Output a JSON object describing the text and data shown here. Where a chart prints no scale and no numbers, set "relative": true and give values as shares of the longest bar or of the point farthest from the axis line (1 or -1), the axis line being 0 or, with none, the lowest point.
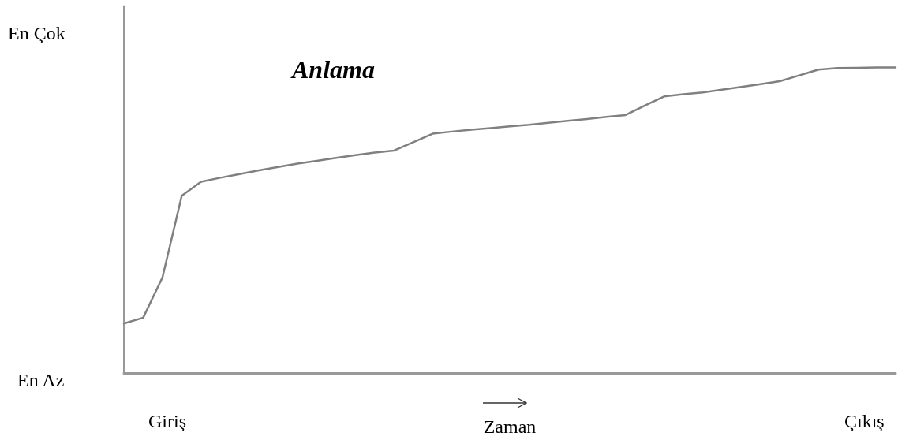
{
  "chart_data": {
    "type": "line",
    "relative": true,
    "xlabel": "Zaman",
    "annotations": [
      "Anlama",
      "En Çok",
      "En Az",
      "Giriş",
      "Çıkış"
    ],
    "categories": [
      null,
      null,
      null,
      null,
      null,
      null,
      null,
      null,
      null,
      null,
      null,
      null,
      null,
      null,
      null,
      null,
      null,
      null,
      null,
      null,
      null,
      null,
      null,
      null,
      null,
      null,
      null,
      null,
      null,
      null,
      null,
      null,
      null,
      null,
      null,
      null,
      null,
      null,
      null,
      null,
      null
    ],
    "series": [
      {
        "color": "#808080",
        "values": [
          0.162,
          0.181,
          0.313,
          0.58,
          0.626,
          0.639,
          0.651,
          0.663,
          0.674,
          0.685,
          0.694,
          0.704,
          0.713,
          0.721,
          0.728,
          0.755,
          0.783,
          0.79,
          0.796,
          0.801,
          0.807,
          0.812,
          0.819,
          0.825,
          0.831,
          0.838,
          0.844,
          0.875,
          0.905,
          0.912,
          0.918,
          0.927,
          0.936,
          0.945,
          0.955,
          0.974,
          0.993,
          0.998,
          0.999,
          1,
          1
        ]
      }
    ],
    "marker": "none",
    "line_style": "solid"
  }
}
